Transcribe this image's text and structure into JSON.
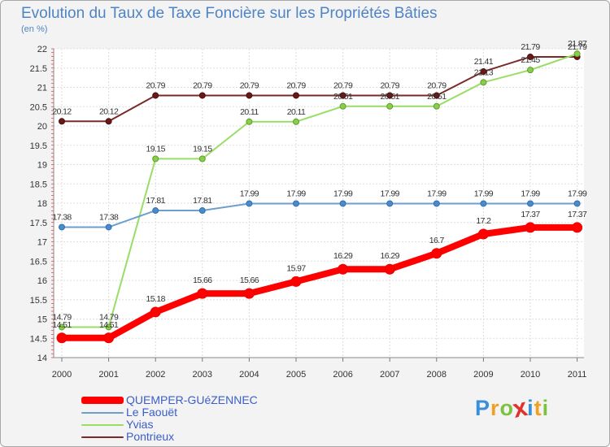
{
  "chart_data": {
    "type": "line",
    "title": "Evolution du Taux de Taxe Foncière sur les Propriétés Bâties",
    "ylabel": "(en %)",
    "xlabel": "",
    "categories": [
      "2000",
      "2001",
      "2002",
      "2003",
      "2004",
      "2005",
      "2006",
      "2007",
      "2008",
      "2009",
      "2010",
      "2011"
    ],
    "ylim": [
      14,
      22
    ],
    "yticks": [
      "14",
      "14.5",
      "15",
      "15.5",
      "16",
      "16.5",
      "17",
      "17.5",
      "18",
      "18.5",
      "19",
      "19.5",
      "20",
      "20.5",
      "21",
      "21.5",
      "22"
    ],
    "grid": true,
    "series": [
      {
        "name": "QUEMPER-GUéZENNEC",
        "color": "#ff0000",
        "values": [
          14.51,
          14.51,
          15.18,
          15.66,
          15.66,
          15.97,
          16.29,
          16.29,
          16.7,
          17.2,
          17.37,
          17.37
        ],
        "labels": [
          "14.51",
          "14.51",
          "15.18",
          "15.66",
          "15.66",
          "15.97",
          "16.29",
          "16.29",
          "16.7",
          "17.2",
          "17.37",
          "17.37"
        ]
      },
      {
        "name": "Le Faouët",
        "color": "#6b9fd0",
        "values": [
          17.38,
          17.38,
          17.81,
          17.81,
          17.99,
          17.99,
          17.99,
          17.99,
          17.99,
          17.99,
          17.99,
          17.99
        ],
        "labels": [
          "17.38",
          "17.38",
          "17.81",
          "17.81",
          "17.99",
          "17.99",
          "17.99",
          "17.99",
          "17.99",
          "17.99",
          "17.99",
          "17.99"
        ]
      },
      {
        "name": "Yvias",
        "color": "#99dd66",
        "values": [
          14.79,
          14.79,
          19.15,
          19.15,
          20.11,
          20.11,
          20.51,
          20.51,
          20.51,
          21.13,
          21.45,
          21.87
        ],
        "labels": [
          "14.79",
          "14.79",
          "19.15",
          "19.15",
          "20.11",
          "20.11",
          "20.51",
          "20.51",
          "20.51",
          "21.13",
          "21.45",
          "21.87"
        ]
      },
      {
        "name": "Pontrieux",
        "color": "#7a2a2a",
        "values": [
          20.12,
          20.12,
          20.79,
          20.79,
          20.79,
          20.79,
          20.79,
          20.79,
          20.79,
          21.41,
          21.79,
          21.79
        ],
        "labels": [
          "20.12",
          "20.12",
          "20.79",
          "20.79",
          "20.79",
          "20.79",
          "20.79",
          "20.79",
          "20.79",
          "21.41",
          "21.79",
          "21.79"
        ]
      }
    ]
  },
  "legend": {
    "items": [
      {
        "name": "QUEMPER-GUéZENNEC"
      },
      {
        "name": "Le Faouët"
      },
      {
        "name": "Yvias"
      },
      {
        "name": "Pontrieux"
      }
    ]
  },
  "logo": {
    "letters": [
      "P",
      "r",
      "o",
      "x",
      "i",
      "t",
      "i"
    ],
    "colors": [
      "#3a8fd8",
      "#f2a020",
      "#7cc242",
      "#e2302b",
      "#3a8fd8",
      "#f2a020",
      "#7cc242"
    ]
  }
}
